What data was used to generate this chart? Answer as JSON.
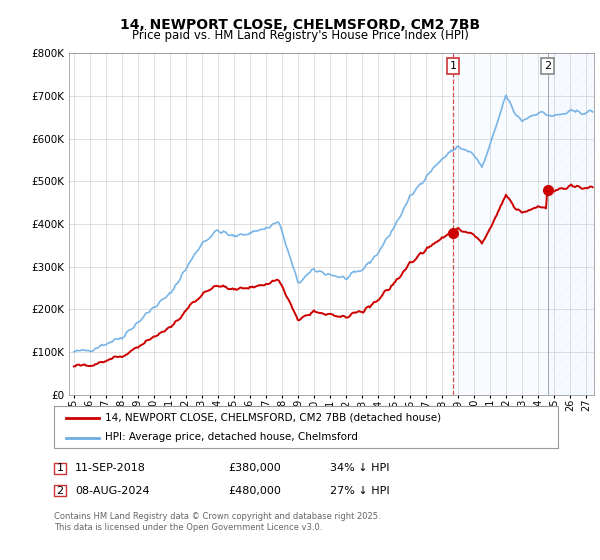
{
  "title": "14, NEWPORT CLOSE, CHELMSFORD, CM2 7BB",
  "subtitle": "Price paid vs. HM Land Registry's House Price Index (HPI)",
  "hpi_color": "#6aade4",
  "price_color": "#cc0000",
  "vline_color": "#cc3333",
  "shade_color": "#ddeeff",
  "hatch_color": "#aaccee",
  "background_color": "#ffffff",
  "grid_color": "#bbbbbb",
  "ylim": [
    0,
    800000
  ],
  "yticks": [
    0,
    100000,
    200000,
    300000,
    400000,
    500000,
    600000,
    700000,
    800000
  ],
  "purchase1_year": 2018.69,
  "purchase1_price": 380000,
  "purchase2_year": 2024.6,
  "purchase2_price": 480000,
  "legend_property": "14, NEWPORT CLOSE, CHELMSFORD, CM2 7BB (detached house)",
  "legend_hpi": "HPI: Average price, detached house, Chelmsford",
  "footnote": "Contains HM Land Registry data © Crown copyright and database right 2025.\nThis data is licensed under the Open Government Licence v3.0.",
  "title_fontsize": 10,
  "subtitle_fontsize": 8.5,
  "tick_fontsize": 7.5,
  "legend_fontsize": 7.5,
  "annot_fontsize": 8,
  "footnote_fontsize": 6
}
